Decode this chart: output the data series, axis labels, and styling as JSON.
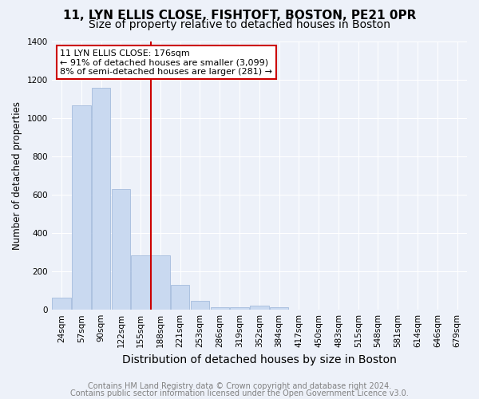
{
  "title1": "11, LYN ELLIS CLOSE, FISHTOFT, BOSTON, PE21 0PR",
  "title2": "Size of property relative to detached houses in Boston",
  "xlabel": "Distribution of detached houses by size in Boston",
  "ylabel": "Number of detached properties",
  "categories": [
    "24sqm",
    "57sqm",
    "90sqm",
    "122sqm",
    "155sqm",
    "188sqm",
    "221sqm",
    "253sqm",
    "286sqm",
    "319sqm",
    "352sqm",
    "384sqm",
    "417sqm",
    "450sqm",
    "483sqm",
    "515sqm",
    "548sqm",
    "581sqm",
    "614sqm",
    "646sqm",
    "679sqm"
  ],
  "values": [
    65,
    1065,
    1155,
    630,
    285,
    285,
    130,
    45,
    15,
    15,
    20,
    15,
    0,
    0,
    0,
    0,
    0,
    0,
    0,
    0,
    0
  ],
  "bar_color": "#c9d9f0",
  "bar_edge_color": "#9ab4d8",
  "vline_x": 4.5,
  "vline_color": "#cc0000",
  "annotation_line1": "11 LYN ELLIS CLOSE: 176sqm",
  "annotation_line2": "← 91% of detached houses are smaller (3,099)",
  "annotation_line3": "8% of semi-detached houses are larger (281) →",
  "annotation_box_facecolor": "#ffffff",
  "annotation_box_edgecolor": "#cc0000",
  "ylim": [
    0,
    1400
  ],
  "yticks": [
    0,
    200,
    400,
    600,
    800,
    1000,
    1200,
    1400
  ],
  "footer1": "Contains HM Land Registry data © Crown copyright and database right 2024.",
  "footer2": "Contains public sector information licensed under the Open Government Licence v3.0.",
  "bg_color": "#edf1f9",
  "grid_color": "#ffffff",
  "title1_fontsize": 11,
  "title2_fontsize": 10,
  "xlabel_fontsize": 10,
  "ylabel_fontsize": 8.5,
  "tick_fontsize": 7.5,
  "annot_fontsize": 8,
  "footer_fontsize": 7
}
